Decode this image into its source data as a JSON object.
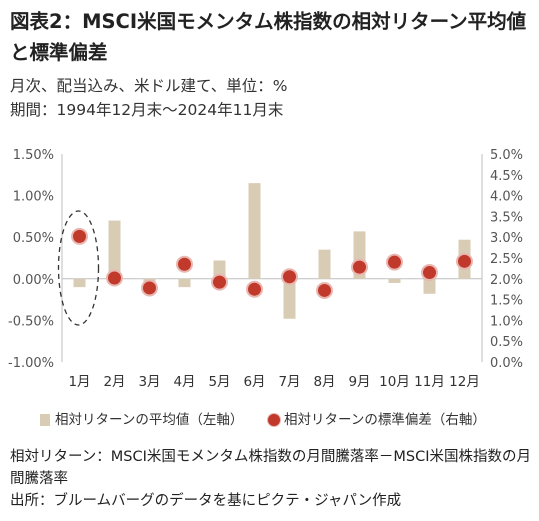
{
  "title": "図表2：MSCI米国モメンタム株指数の相対リターン平均値と標準偏差",
  "subtitle1": "月次、配当込み、米ドル建て、単位：%",
  "subtitle2": "期間：1994年12月末～2024年11月末",
  "legend": {
    "bar_label": "相対リターンの平均値（左軸）",
    "dot_label": "相対リターンの標準偏差（右軸）"
  },
  "notes": {
    "line1": "相対リターン：MSCI米国モメンタム株指数の月間騰落率－MSCI米国株指数の月間騰落率",
    "line2": "出所：ブルームバーグのデータを基にピクテ・ジャパン作成"
  },
  "colors": {
    "bar": "#d9ccb4",
    "dot": "#c0392b",
    "dot_ring": "#e8b7b1",
    "highlight": "#333333"
  },
  "chart_data": {
    "type": "bar",
    "categories": [
      "1月",
      "2月",
      "3月",
      "4月",
      "5月",
      "6月",
      "7月",
      "8月",
      "9月",
      "10月",
      "11月",
      "12月"
    ],
    "series": [
      {
        "name": "相対リターンの平均値（左軸）",
        "axis": "left",
        "type": "bar",
        "values": [
          -0.1,
          0.7,
          -0.06,
          -0.1,
          0.22,
          1.15,
          -0.48,
          0.35,
          0.57,
          -0.05,
          -0.18,
          0.47
        ]
      },
      {
        "name": "相対リターンの標準偏差（右軸）",
        "axis": "right",
        "type": "scatter",
        "values": [
          3.02,
          2.02,
          1.78,
          2.35,
          1.92,
          1.75,
          2.05,
          1.72,
          2.28,
          2.4,
          2.15,
          2.42
        ]
      }
    ],
    "y_left": {
      "lim": [
        -1.0,
        1.5
      ],
      "ticks": [
        -1.0,
        -0.5,
        0.0,
        0.5,
        1.0,
        1.5
      ],
      "tick_labels": [
        "-1.00%",
        "-0.50%",
        "0.00%",
        "0.50%",
        "1.00%",
        "1.50%"
      ]
    },
    "y_right": {
      "lim": [
        0.0,
        5.0
      ],
      "ticks": [
        0,
        0.5,
        1,
        1.5,
        2,
        2.5,
        3,
        3.5,
        4,
        4.5,
        5
      ],
      "tick_labels": [
        "0.0%",
        "0.5%",
        "1.0%",
        "1.5%",
        "2.0%",
        "2.5%",
        "3.0%",
        "3.5%",
        "4.0%",
        "4.5%",
        "5.0%"
      ]
    },
    "highlight": {
      "category": "1月",
      "style": "dashed-ellipse"
    },
    "grid": false,
    "legend_position": "bottom"
  }
}
